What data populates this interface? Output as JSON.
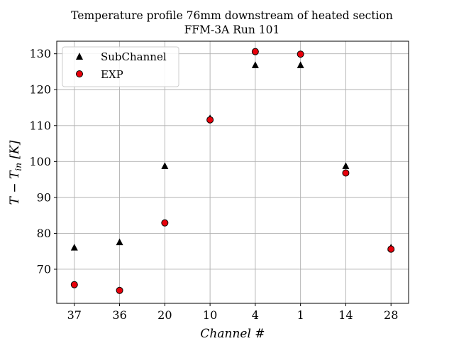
{
  "chart_data": {
    "type": "scatter",
    "title": "Temperature profile 76mm downstream of heated section",
    "subtitle": "FFM-3A Run 101",
    "xlabel": "Channel #",
    "ylabel": "T − T_in [K]",
    "ylabel_parts": {
      "T": "T",
      "minus": " − ",
      "sub_base": "T",
      "sub": "in",
      "units": " [K]"
    },
    "categories": [
      "37",
      "36",
      "20",
      "10",
      "4",
      "1",
      "14",
      "28"
    ],
    "ylim": [
      60.5,
      133.5
    ],
    "yticks": [
      70,
      80,
      90,
      100,
      110,
      120,
      130
    ],
    "grid": true,
    "legend_position": "top-left",
    "series": [
      {
        "name": "SubChannel",
        "marker": "triangle",
        "color": "#000000",
        "values": [
          76.0,
          77.5,
          98.7,
          112.0,
          126.8,
          126.8,
          98.7,
          76.0
        ]
      },
      {
        "name": "EXP",
        "marker": "circle",
        "color": "#e8000b",
        "values": [
          65.7,
          64.1,
          82.9,
          111.6,
          130.6,
          129.9,
          96.8,
          75.6
        ]
      }
    ]
  }
}
